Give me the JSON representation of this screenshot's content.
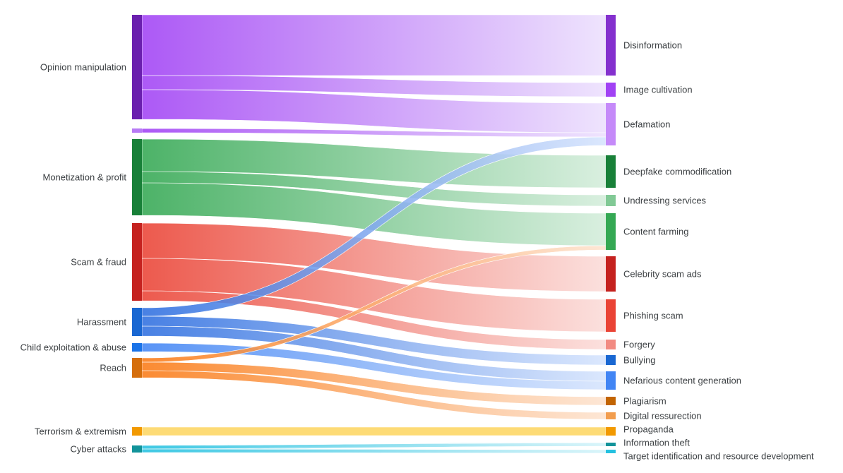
{
  "chart_data": {
    "type": "sankey",
    "title": "",
    "sources": [
      {
        "id": "opinion",
        "label": "Opinion manipulation",
        "color": "#6a1fae",
        "link_color": "#a142f4",
        "link_fade": "#ece0fd"
      },
      {
        "id": "opinion2",
        "label": "",
        "color": "#b77af5",
        "link_color": "#a142f4",
        "link_fade": "#ece0fd"
      },
      {
        "id": "monetization",
        "label": "Monetization & profit",
        "color": "#188038",
        "link_color": "#34a853",
        "link_fade": "#d4eddb"
      },
      {
        "id": "scam",
        "label": "Scam & fraud",
        "color": "#c5221f",
        "link_color": "#ea4335",
        "link_fade": "#fbdcd9"
      },
      {
        "id": "harassment",
        "label": "Harassment",
        "color": "#1967d2",
        "link_color": "#2f6fe0",
        "link_fade": "#d6e4fd"
      },
      {
        "id": "child",
        "label": "Child exploitation & abuse",
        "color": "#1a73e8",
        "link_color": "#4285f4",
        "link_fade": "#d6e4fd"
      },
      {
        "id": "reach",
        "label": "Reach",
        "color": "#d56e0c",
        "link_color": "#fa7b17",
        "link_fade": "#fde3cf"
      },
      {
        "id": "terrorism",
        "label": "Terrorism & extremism",
        "color": "#f29900",
        "link_color": "#fdd663",
        "link_fade": "#fdd663"
      },
      {
        "id": "cyber",
        "label": "Cyber attacks",
        "color": "#12939a",
        "link_color": "#24c1e0",
        "link_fade": "#d4f3f9"
      }
    ],
    "targets": [
      {
        "id": "disinformation",
        "label": "Disinformation",
        "color": "#8430ce"
      },
      {
        "id": "image",
        "label": "Image cultivation",
        "color": "#a142f4"
      },
      {
        "id": "defamation",
        "label": "Defamation",
        "color": "#c58af9"
      },
      {
        "id": "deepfake",
        "label": "Deepfake commodification",
        "color": "#188038"
      },
      {
        "id": "undressing",
        "label": "Undressing services",
        "color": "#81c995"
      },
      {
        "id": "contentfarming",
        "label": "Content farming",
        "color": "#34a853"
      },
      {
        "id": "celebrity",
        "label": "Celebrity scam ads",
        "color": "#c5221f"
      },
      {
        "id": "phishing",
        "label": "Phishing scam",
        "color": "#ea4335"
      },
      {
        "id": "forgery",
        "label": "Forgery",
        "color": "#f28b82"
      },
      {
        "id": "bullying",
        "label": "Bullying",
        "color": "#1967d2"
      },
      {
        "id": "nefarious",
        "label": "Nefarious content generation",
        "color": "#4285f4"
      },
      {
        "id": "plagiarism",
        "label": "Plagiarism",
        "color": "#c26401"
      },
      {
        "id": "digital",
        "label": "Digital ressurection",
        "color": "#f29d4e"
      },
      {
        "id": "propaganda",
        "label": "Propaganda",
        "color": "#f29900"
      },
      {
        "id": "infotheft",
        "label": "Information theft",
        "color": "#12939a"
      },
      {
        "id": "targetid",
        "label": "Target identification and resource development",
        "color": "#24c1e0"
      }
    ],
    "links": [
      {
        "source": "opinion",
        "target": "disinformation",
        "value": 43
      },
      {
        "source": "opinion",
        "target": "image",
        "value": 10
      },
      {
        "source": "opinion",
        "target": "defamation",
        "value": 21
      },
      {
        "source": "opinion2",
        "target": "defamation",
        "value": 3
      },
      {
        "source": "monetization",
        "target": "deepfake",
        "value": 23
      },
      {
        "source": "monetization",
        "target": "undressing",
        "value": 8
      },
      {
        "source": "monetization",
        "target": "contentfarming",
        "value": 23
      },
      {
        "source": "scam",
        "target": "celebrity",
        "value": 25
      },
      {
        "source": "scam",
        "target": "phishing",
        "value": 23
      },
      {
        "source": "scam",
        "target": "forgery",
        "value": 7
      },
      {
        "source": "harassment",
        "target": "defamation",
        "value": 6
      },
      {
        "source": "harassment",
        "target": "bullying",
        "value": 7
      },
      {
        "source": "harassment",
        "target": "nefarious",
        "value": 7
      },
      {
        "source": "child",
        "target": "nefarious",
        "value": 6
      },
      {
        "source": "reach",
        "target": "contentfarming",
        "value": 3
      },
      {
        "source": "reach",
        "target": "plagiarism",
        "value": 6
      },
      {
        "source": "reach",
        "target": "digital",
        "value": 5
      },
      {
        "source": "terrorism",
        "target": "propaganda",
        "value": 6
      },
      {
        "source": "cyber",
        "target": "infotheft",
        "value": 2.5
      },
      {
        "source": "cyber",
        "target": "targetid",
        "value": 2.5
      }
    ]
  }
}
